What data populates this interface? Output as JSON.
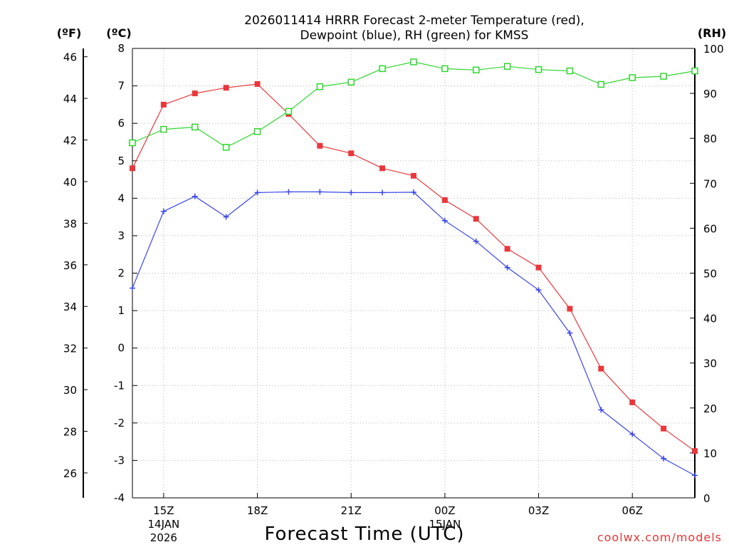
{
  "chart_data": {
    "type": "line",
    "title_line1": "2026011414 HRRR Forecast 2-meter Temperature (red),",
    "title_line2": "Dewpoint (blue), RH (green) for KMSS",
    "xlabel": "Forecast Time (UTC)",
    "credit": "coolwx.com/models",
    "left_outer_axis": {
      "label": "(ºF)",
      "ticks": [
        "26",
        "28",
        "30",
        "32",
        "34",
        "36",
        "38",
        "40",
        "42",
        "44",
        "46"
      ],
      "range": [
        24.8,
        46.4
      ]
    },
    "left_inner_axis": {
      "label": "(ºC)",
      "ticks": [
        "-4",
        "-3",
        "-2",
        "-1",
        "0",
        "1",
        "2",
        "3",
        "4",
        "5",
        "6",
        "7",
        "8"
      ],
      "range": [
        -4.0,
        8.0
      ]
    },
    "right_axis": {
      "label": "(RH)",
      "ticks": [
        "0",
        "10",
        "20",
        "30",
        "40",
        "50",
        "60",
        "70",
        "80",
        "90",
        "100"
      ],
      "range": [
        0,
        100
      ]
    },
    "x_ticks": [
      {
        "hour": 15,
        "label": "15Z",
        "sub1": "14JAN",
        "sub2": "2026"
      },
      {
        "hour": 18,
        "label": "18Z",
        "sub1": "",
        "sub2": ""
      },
      {
        "hour": 21,
        "label": "21Z",
        "sub1": "",
        "sub2": ""
      },
      {
        "hour": 24,
        "label": "00Z",
        "sub1": "15JAN",
        "sub2": ""
      },
      {
        "hour": 27,
        "label": "03Z",
        "sub1": "",
        "sub2": ""
      },
      {
        "hour": 30,
        "label": "06Z",
        "sub1": "",
        "sub2": ""
      }
    ],
    "x_range": [
      14,
      32
    ],
    "x": [
      14,
      15,
      16,
      17,
      18,
      19,
      20,
      21,
      22,
      23,
      24,
      25,
      26,
      27,
      28,
      29,
      30,
      31,
      32
    ],
    "series": [
      {
        "name": "Temperature",
        "units": "ºC",
        "color": "#e8383d",
        "marker": "filled-square",
        "values": [
          4.8,
          6.5,
          6.8,
          6.95,
          7.05,
          6.25,
          5.4,
          5.2,
          4.8,
          4.6,
          3.95,
          3.45,
          2.65,
          2.15,
          1.05,
          -0.55,
          -1.45,
          -2.15,
          -2.75
        ]
      },
      {
        "name": "Dewpoint",
        "units": "ºC",
        "color": "#3a46e8",
        "marker": "plus",
        "values": [
          1.6,
          3.65,
          4.05,
          3.5,
          4.15,
          4.17,
          4.17,
          4.15,
          4.15,
          4.16,
          3.4,
          2.85,
          2.15,
          1.55,
          0.4,
          -1.65,
          -2.3,
          -2.95,
          -3.4
        ]
      },
      {
        "name": "RH",
        "units": "%",
        "color": "#2fd62f",
        "marker": "open-square",
        "values": [
          79,
          82,
          82.5,
          78,
          81.5,
          86,
          91.5,
          92.5,
          95.5,
          97,
          95.5,
          95.2,
          96,
          95.3,
          95,
          92,
          93.5,
          93.8,
          95
        ]
      }
    ]
  }
}
